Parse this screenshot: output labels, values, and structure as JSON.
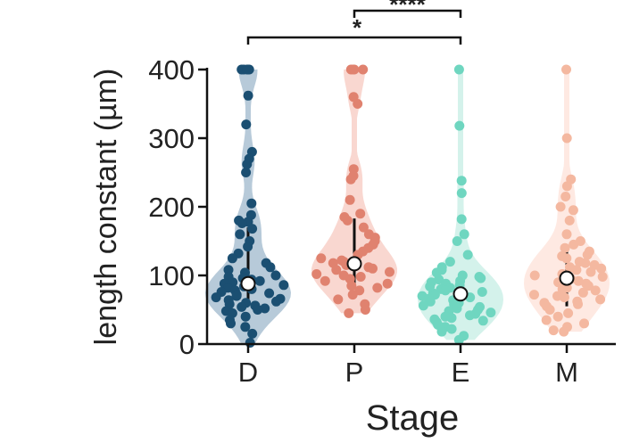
{
  "chart_data": {
    "type": "violin",
    "xlabel": "Stage",
    "ylabel": "length constant (µm)",
    "ylim": [
      0,
      400
    ],
    "yticks": [
      "0",
      "100",
      "200",
      "300",
      "400"
    ],
    "categories": [
      "D",
      "P",
      "E",
      "M"
    ],
    "series": [
      {
        "name": "D",
        "color": "#1b4f72",
        "violin_color": "#9fb8cc",
        "median": 88,
        "iqr": [
          55,
          170
        ],
        "points": [
          400,
          400,
          400,
          400,
          400,
          362,
          320,
          280,
          270,
          262,
          250,
          205,
          188,
          180,
          178,
          176,
          168,
          160,
          150,
          142,
          132,
          125,
          118,
          112,
          108,
          104,
          100,
          98,
          96,
          94,
          92,
          90,
          88,
          86,
          84,
          82,
          80,
          78,
          76,
          74,
          72,
          70,
          68,
          66,
          64,
          62,
          60,
          58,
          56,
          54,
          52,
          50,
          48,
          45,
          40,
          35,
          30,
          25,
          15,
          2
        ]
      },
      {
        "name": "P",
        "color": "#e0826f",
        "violin_color": "#f7c9c0",
        "median": 117,
        "iqr": [
          88,
          183
        ],
        "points": [
          400,
          400,
          400,
          400,
          360,
          350,
          255,
          245,
          240,
          210,
          190,
          185,
          180,
          170,
          160,
          155,
          150,
          145,
          140,
          135,
          130,
          125,
          122,
          120,
          118,
          115,
          112,
          110,
          108,
          105,
          102,
          100,
          98,
          95,
          92,
          88,
          85,
          82,
          78,
          72,
          65,
          58,
          50,
          45
        ]
      },
      {
        "name": "E",
        "color": "#6fd6c0",
        "violin_color": "#c6ede4",
        "median": 73,
        "iqr": [
          55,
          100
        ],
        "points": [
          400,
          318,
          238,
          220,
          182,
          160,
          150,
          130,
          120,
          112,
          108,
          104,
          100,
          98,
          96,
          94,
          92,
          90,
          88,
          86,
          84,
          82,
          80,
          78,
          76,
          74,
          72,
          70,
          68,
          66,
          64,
          62,
          60,
          58,
          56,
          54,
          52,
          50,
          48,
          46,
          44,
          42,
          40,
          38,
          36,
          34,
          32,
          28,
          25,
          22,
          18,
          12,
          6
        ]
      },
      {
        "name": "M",
        "color": "#f4b8a0",
        "violin_color": "#fde2d8",
        "median": 96,
        "iqr": [
          55,
          135
        ],
        "points": [
          400,
          300,
          240,
          230,
          215,
          200,
          195,
          180,
          160,
          150,
          145,
          140,
          135,
          130,
          128,
          125,
          120,
          118,
          115,
          112,
          110,
          108,
          105,
          102,
          100,
          98,
          95,
          92,
          90,
          88,
          85,
          82,
          80,
          78,
          75,
          72,
          70,
          68,
          65,
          62,
          60,
          58,
          55,
          50,
          45,
          40,
          35,
          30,
          25,
          20,
          18
        ]
      }
    ],
    "significance": [
      {
        "from": "D",
        "to": "E",
        "label": "*"
      },
      {
        "from": "P",
        "to": "E",
        "label": "****"
      }
    ]
  }
}
